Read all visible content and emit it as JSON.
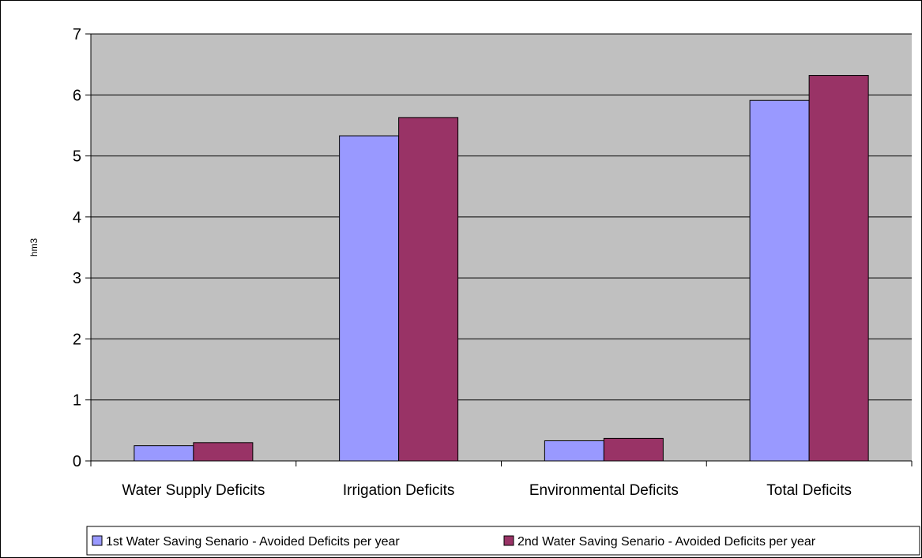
{
  "chart_data": {
    "type": "bar",
    "title": "",
    "xlabel": "",
    "ylabel": "hm3",
    "ylim": [
      0,
      7
    ],
    "yticks": [
      0,
      1,
      2,
      3,
      4,
      5,
      6,
      7
    ],
    "grid": true,
    "legend_position": "bottom",
    "categories": [
      "Water Supply Deficits",
      "Irrigation Deficits",
      "Environmental Deficits",
      "Total Deficits"
    ],
    "series": [
      {
        "name": "1st Water Saving Senario - Avoided Deficits per year",
        "color": "#9999FF",
        "values": [
          0.25,
          5.33,
          0.33,
          5.91
        ]
      },
      {
        "name": "2nd Water Saving Senario - Avoided Deficits per year",
        "color": "#993366",
        "values": [
          0.3,
          5.63,
          0.37,
          6.32
        ]
      }
    ],
    "plot_background": "#C0C0C0"
  }
}
